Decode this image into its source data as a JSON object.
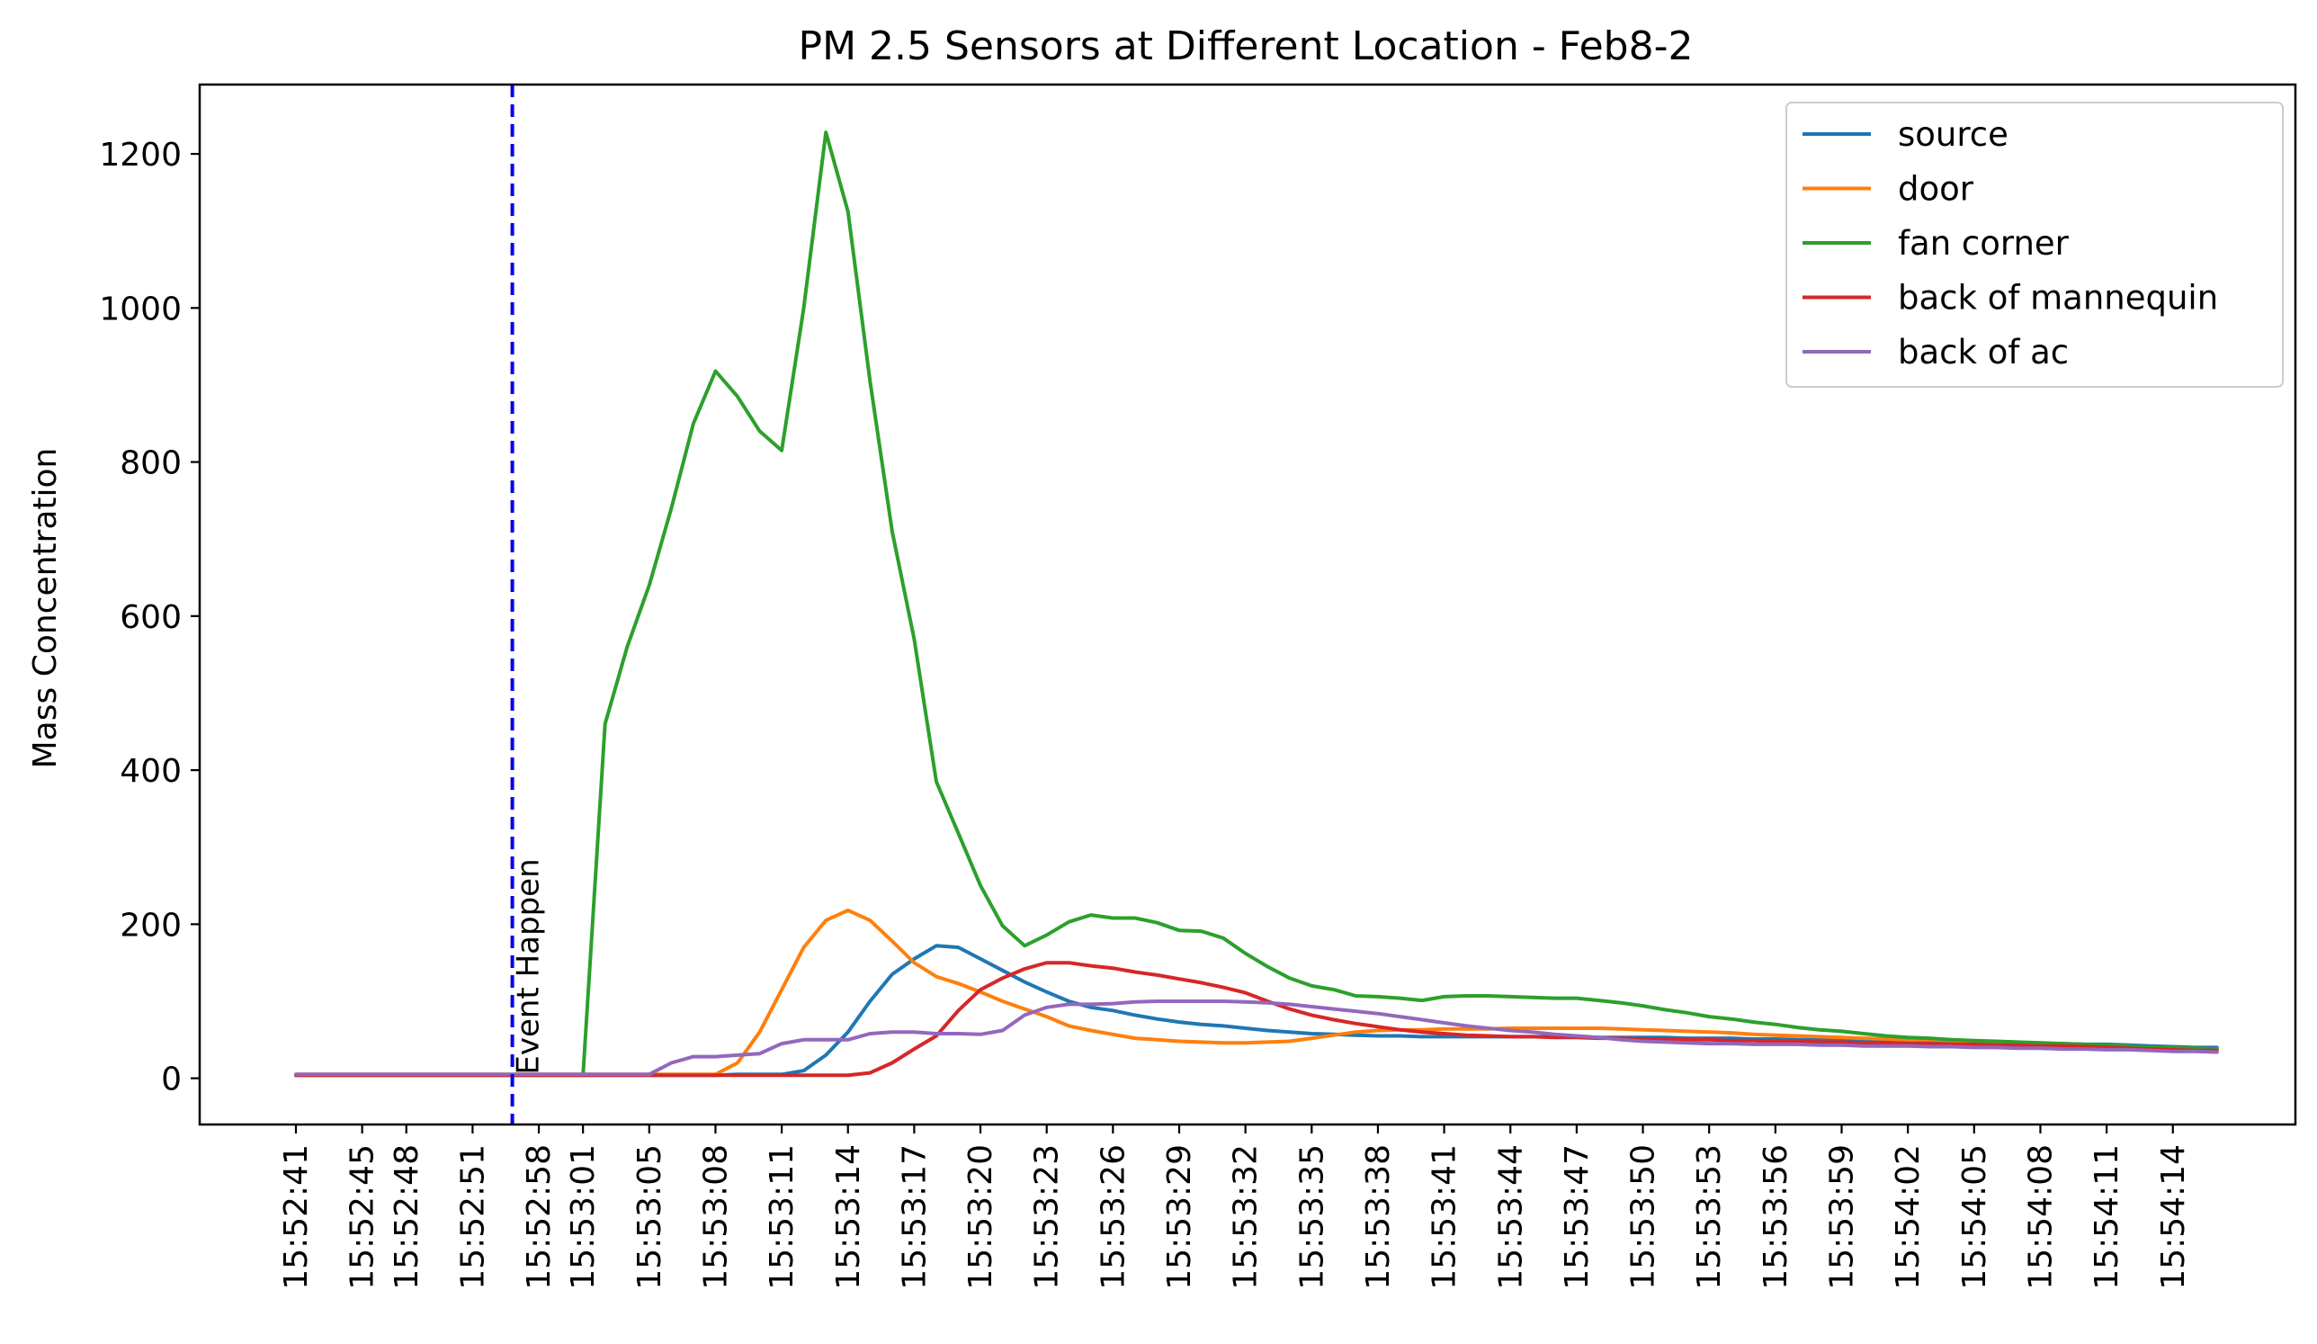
{
  "chart_data": {
    "type": "line",
    "title": "PM 2.5 Sensors at Different Location - Feb8-2",
    "xlabel": "",
    "ylabel": "Mass Concentration",
    "ylim": [
      -60,
      1290
    ],
    "yticks": [
      0,
      200,
      400,
      600,
      800,
      1000,
      1200
    ],
    "x_start_time": "15:52:41",
    "x_step_seconds": 1.5,
    "x_tick_labels": [
      {
        "label": "15:52:41",
        "index": 0
      },
      {
        "label": "15:52:45",
        "index": 3
      },
      {
        "label": "15:52:48",
        "index": 5
      },
      {
        "label": "15:52:51",
        "index": 8
      },
      {
        "label": "15:52:58",
        "index": 11
      },
      {
        "label": "15:53:01",
        "index": 13
      },
      {
        "label": "15:53:05",
        "index": 16
      },
      {
        "label": "15:53:08",
        "index": 19
      },
      {
        "label": "15:53:11",
        "index": 22
      },
      {
        "label": "15:53:14",
        "index": 25
      },
      {
        "label": "15:53:17",
        "index": 28
      },
      {
        "label": "15:53:20",
        "index": 31
      },
      {
        "label": "15:53:23",
        "index": 34
      },
      {
        "label": "15:53:26",
        "index": 37
      },
      {
        "label": "15:53:29",
        "index": 40
      },
      {
        "label": "15:53:32",
        "index": 43
      },
      {
        "label": "15:53:35",
        "index": 46
      },
      {
        "label": "15:53:38",
        "index": 49
      },
      {
        "label": "15:53:41",
        "index": 52
      },
      {
        "label": "15:53:44",
        "index": 55
      },
      {
        "label": "15:53:47",
        "index": 58
      },
      {
        "label": "15:53:50",
        "index": 61
      },
      {
        "label": "15:53:53",
        "index": 64
      },
      {
        "label": "15:53:56",
        "index": 67
      },
      {
        "label": "15:53:59",
        "index": 70
      },
      {
        "label": "15:54:02",
        "index": 73
      },
      {
        "label": "15:54:05",
        "index": 76
      },
      {
        "label": "15:54:08",
        "index": 79
      },
      {
        "label": "15:54:11",
        "index": 82
      },
      {
        "label": "15:54:14",
        "index": 85
      }
    ],
    "annotations": [
      {
        "text": "Event Happen",
        "x_index": 9.8,
        "style": "dashed vertical line",
        "color": "#0000ee"
      }
    ],
    "legend_position": "upper right",
    "grid": false,
    "series": [
      {
        "name": "source",
        "color": "#1f77b4",
        "values": [
          4,
          4,
          4,
          4,
          4,
          4,
          4,
          4,
          4,
          4,
          4,
          4,
          4,
          4,
          4,
          4,
          4,
          4,
          4,
          4,
          5,
          5,
          5,
          10,
          30,
          60,
          100,
          135,
          155,
          172,
          170,
          155,
          140,
          125,
          112,
          100,
          92,
          88,
          82,
          77,
          73,
          70,
          68,
          65,
          62,
          60,
          58,
          57,
          56,
          55,
          55,
          54,
          54,
          54,
          54,
          54,
          54,
          54,
          54,
          53,
          53,
          53,
          53,
          52,
          52,
          52,
          51,
          51,
          50,
          50,
          50,
          49,
          49,
          48,
          48,
          47,
          47,
          46,
          46,
          45,
          45,
          44,
          44,
          43,
          42,
          41,
          40,
          40
        ]
      },
      {
        "name": "door",
        "color": "#ff7f0e",
        "values": [
          5,
          5,
          5,
          5,
          5,
          5,
          5,
          5,
          5,
          5,
          5,
          5,
          5,
          5,
          5,
          5,
          5,
          5,
          5,
          5,
          20,
          60,
          115,
          170,
          205,
          218,
          205,
          178,
          150,
          132,
          123,
          112,
          100,
          90,
          80,
          68,
          62,
          57,
          52,
          50,
          48,
          47,
          46,
          46,
          47,
          48,
          52,
          56,
          60,
          62,
          63,
          63,
          64,
          64,
          64,
          65,
          65,
          65,
          65,
          65,
          64,
          63,
          62,
          61,
          60,
          59,
          57,
          56,
          55,
          54,
          53,
          52,
          51,
          50,
          50,
          49,
          48,
          47,
          46,
          45,
          44,
          43,
          42,
          41,
          40,
          39,
          38,
          38
        ]
      },
      {
        "name": "fan corner",
        "color": "#2ca02c",
        "values": [
          4,
          4,
          4,
          4,
          4,
          4,
          4,
          4,
          4,
          4,
          4,
          4,
          4,
          4,
          460,
          560,
          640,
          740,
          850,
          918,
          885,
          840,
          815,
          1000,
          1228,
          1125,
          905,
          710,
          570,
          385,
          318,
          250,
          198,
          172,
          186,
          203,
          212,
          208,
          208,
          202,
          192,
          191,
          182,
          162,
          145,
          130,
          120,
          115,
          107,
          106,
          104,
          101,
          106,
          107,
          107,
          106,
          105,
          104,
          104,
          101,
          98,
          94,
          89,
          85,
          80,
          77,
          73,
          70,
          66,
          63,
          61,
          58,
          55,
          53,
          52,
          50,
          49,
          48,
          47,
          46,
          45,
          44,
          43,
          42,
          40,
          40,
          39,
          38
        ]
      },
      {
        "name": "back of mannequin",
        "color": "#d62728",
        "values": [
          4,
          4,
          4,
          4,
          4,
          4,
          4,
          4,
          4,
          4,
          4,
          4,
          4,
          4,
          4,
          4,
          4,
          4,
          4,
          4,
          4,
          4,
          4,
          4,
          4,
          4,
          7,
          20,
          38,
          55,
          88,
          115,
          130,
          142,
          150,
          150,
          146,
          143,
          138,
          134,
          129,
          124,
          118,
          111,
          100,
          90,
          82,
          76,
          71,
          67,
          63,
          60,
          58,
          56,
          55,
          54,
          54,
          53,
          53,
          52,
          52,
          51,
          51,
          50,
          50,
          49,
          49,
          48,
          48,
          47,
          47,
          46,
          46,
          45,
          45,
          44,
          44,
          43,
          43,
          42,
          42,
          41,
          40,
          39,
          38,
          37,
          36,
          36
        ]
      },
      {
        "name": "back of ac",
        "color": "#9467bd",
        "values": [
          5,
          5,
          5,
          5,
          5,
          5,
          5,
          5,
          5,
          5,
          5,
          5,
          5,
          5,
          5,
          5,
          5,
          20,
          28,
          28,
          30,
          32,
          45,
          50,
          50,
          50,
          58,
          60,
          60,
          58,
          58,
          57,
          62,
          82,
          92,
          96,
          96,
          97,
          99,
          100,
          100,
          100,
          100,
          99,
          98,
          96,
          93,
          90,
          87,
          84,
          80,
          76,
          72,
          68,
          65,
          62,
          60,
          57,
          55,
          53,
          50,
          48,
          47,
          46,
          45,
          45,
          44,
          44,
          44,
          43,
          43,
          42,
          42,
          42,
          41,
          41,
          40,
          40,
          39,
          39,
          38,
          38,
          37,
          37,
          36,
          35,
          35,
          34
        ]
      }
    ]
  }
}
